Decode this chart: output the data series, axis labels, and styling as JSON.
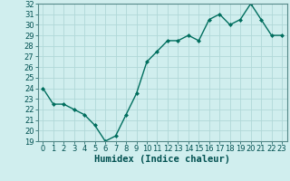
{
  "x": [
    0,
    1,
    2,
    3,
    4,
    5,
    6,
    7,
    8,
    9,
    10,
    11,
    12,
    13,
    14,
    15,
    16,
    17,
    18,
    19,
    20,
    21,
    22,
    23
  ],
  "y": [
    24,
    22.5,
    22.5,
    22,
    21.5,
    20.5,
    19,
    19.5,
    21.5,
    23.5,
    26.5,
    27.5,
    28.5,
    28.5,
    29,
    28.5,
    30.5,
    31,
    30,
    30.5,
    32,
    30.5,
    29,
    29
  ],
  "line_color": "#006e5e",
  "marker": "D",
  "marker_size": 2.0,
  "bg_color": "#d0eeee",
  "grid_color": "#b0d8d8",
  "xlabel": "Humidex (Indice chaleur)",
  "ylim": [
    19,
    32
  ],
  "xlim_min": -0.5,
  "xlim_max": 23.5,
  "yticks": [
    19,
    20,
    21,
    22,
    23,
    24,
    25,
    26,
    27,
    28,
    29,
    30,
    31,
    32
  ],
  "xticks": [
    0,
    1,
    2,
    3,
    4,
    5,
    6,
    7,
    8,
    9,
    10,
    11,
    12,
    13,
    14,
    15,
    16,
    17,
    18,
    19,
    20,
    21,
    22,
    23
  ],
  "xlabel_fontsize": 7.5,
  "tick_fontsize": 6.0,
  "linewidth": 1.0
}
